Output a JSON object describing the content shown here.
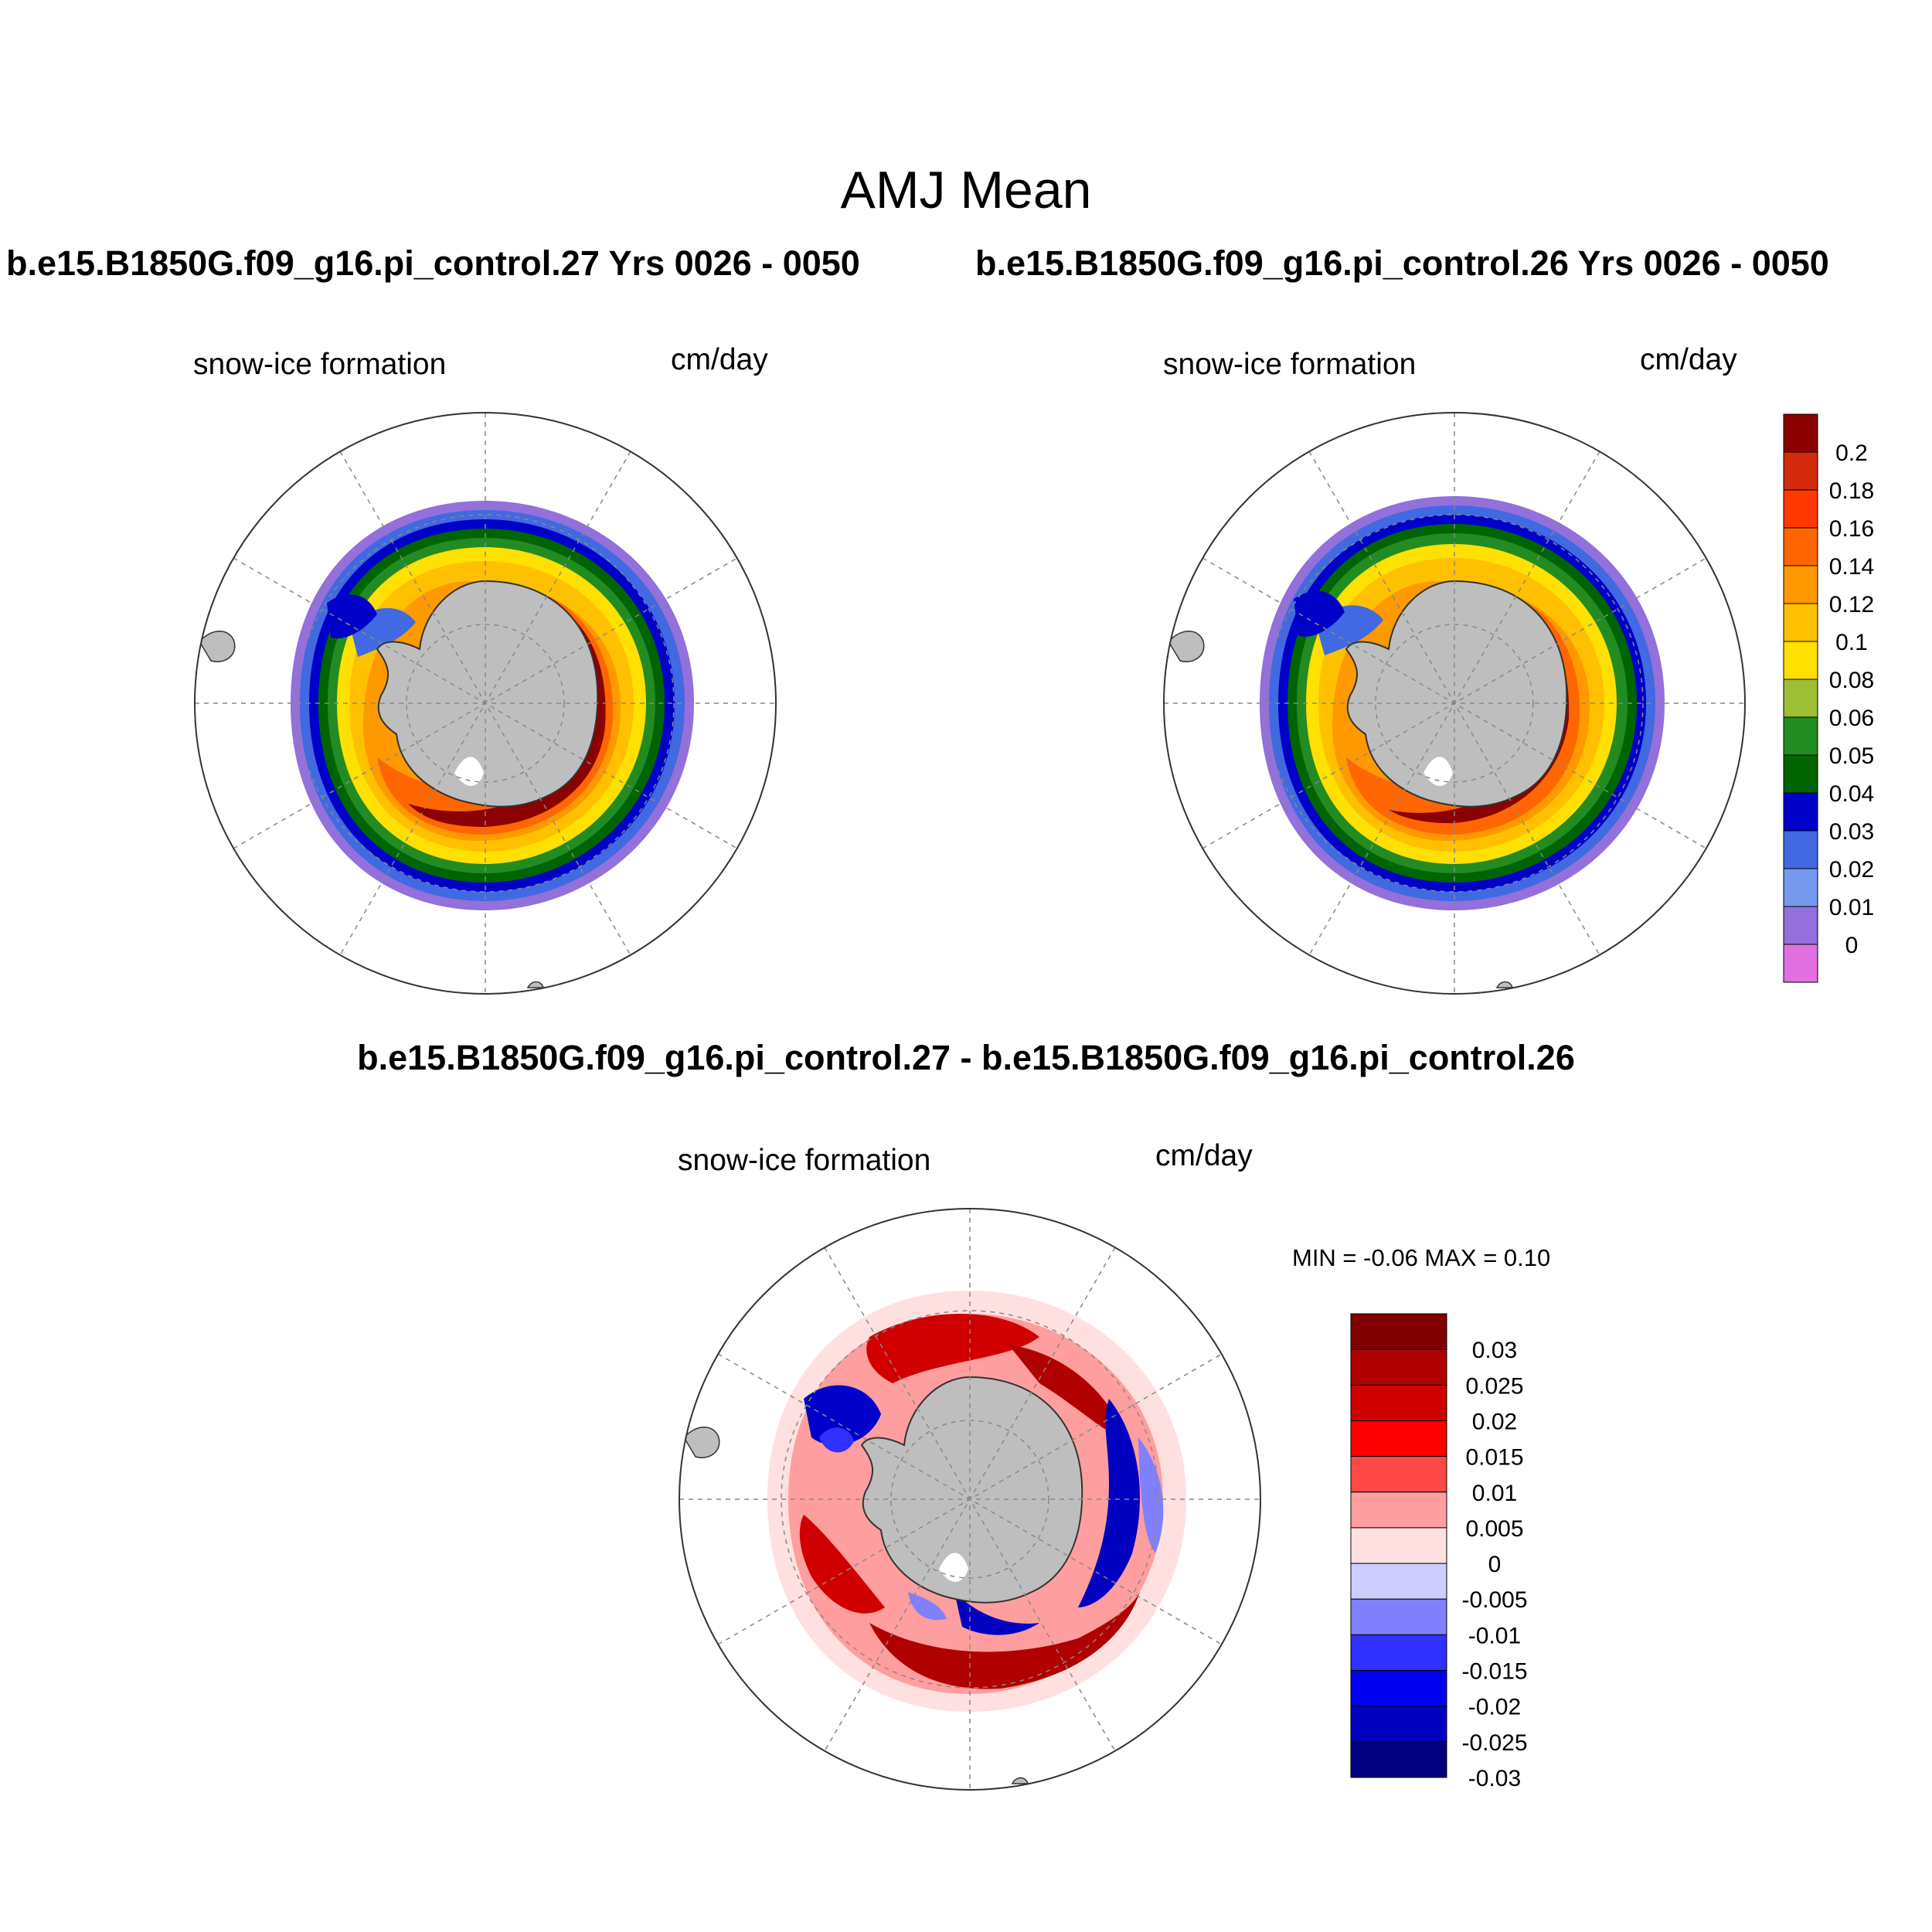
{
  "title": "AMJ Mean",
  "runs": {
    "a": "b.e15.B1850G.f09_g16.pi_control.27  Yrs 0026 - 0050",
    "b": "b.e15.B1850G.f09_g16.pi_control.26  Yrs 0026 - 0050",
    "diff": "b.e15.B1850G.f09_g16.pi_control.27 - b.e15.B1850G.f09_g16.pi_control.26"
  },
  "panels": [
    {
      "id": "a",
      "variable": "snow-ice formation",
      "units": "cm/day"
    },
    {
      "id": "b",
      "variable": "snow-ice formation",
      "units": "cm/day"
    },
    {
      "id": "c",
      "variable": "snow-ice formation",
      "units": "cm/day"
    }
  ],
  "minmax": "MIN =  -0.06 MAX =   0.10",
  "colorbar_top": {
    "labels": [
      "0.2",
      "0.18",
      "0.16",
      "0.14",
      "0.12",
      "0.1",
      "0.08",
      "0.06",
      "0.05",
      "0.04",
      "0.03",
      "0.02",
      "0.01",
      "0"
    ],
    "colors": [
      "#8b0000",
      "#d42a0c",
      "#ff3a00",
      "#ff6600",
      "#ff9900",
      "#ffc000",
      "#ffe000",
      "#9dbf35",
      "#228b22",
      "#006400",
      "#0000c8",
      "#4169e1",
      "#7799ee",
      "#9370db",
      "#e070e0"
    ]
  },
  "colorbar_diff": {
    "labels": [
      "0.03",
      "0.025",
      "0.02",
      "0.015",
      "0.01",
      "0.005",
      "0",
      "-0.005",
      "-0.01",
      "-0.015",
      "-0.02",
      "-0.025",
      "-0.03"
    ],
    "colors": [
      "#800000",
      "#b00000",
      "#d00000",
      "#ff0000",
      "#ff4848",
      "#ff9e9e",
      "#ffe0e0",
      "#cdcdff",
      "#8080ff",
      "#3030ff",
      "#0000f0",
      "#0000c0",
      "#000080"
    ]
  },
  "colors": {
    "land": "#bebebe",
    "grid": "#888888"
  }
}
